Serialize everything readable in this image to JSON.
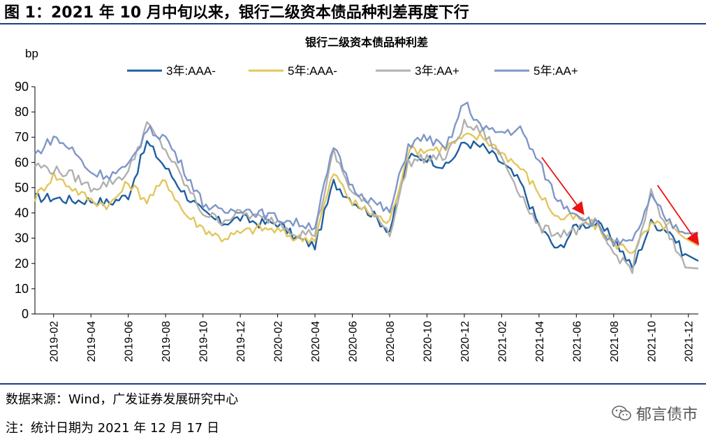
{
  "figure": {
    "title": "图 1：2021 年 10 月中旬以来，银行二级资本债品种利差再度下行",
    "source": "数据来源：Wind，广发证券发展研究中心",
    "note": "注：统计日期为 2021 年 12 月 17 日",
    "watermark": "郁言债市"
  },
  "chart_data": {
    "type": "line",
    "title": "银行二级资本债品种利差",
    "ylabel": "bp",
    "xlabel": "",
    "ylim": [
      0,
      90
    ],
    "yticks": [
      0,
      10,
      20,
      30,
      40,
      50,
      60,
      70,
      80,
      90
    ],
    "x_start": "2019-01",
    "x_end": "2021-12-17",
    "xticks": [
      "2019-02",
      "2019-04",
      "2019-06",
      "2019-08",
      "2019-10",
      "2019-12",
      "2020-02",
      "2020-04",
      "2020-06",
      "2020-08",
      "2020-10",
      "2020-12",
      "2021-02",
      "2021-04",
      "2021-06",
      "2021-08",
      "2021-10",
      "2021-12"
    ],
    "x": [
      "2019-01",
      "2019-02",
      "2019-03",
      "2019-04",
      "2019-05",
      "2019-06",
      "2019-07",
      "2019-08",
      "2019-09",
      "2019-10",
      "2019-11",
      "2019-12",
      "2020-01",
      "2020-02",
      "2020-03",
      "2020-04",
      "2020-05",
      "2020-06",
      "2020-07",
      "2020-08",
      "2020-09",
      "2020-10",
      "2020-11",
      "2020-12",
      "2021-01",
      "2021-02",
      "2021-03",
      "2021-04",
      "2021-05",
      "2021-06",
      "2021-07",
      "2021-08",
      "2021-09",
      "2021-10",
      "2021-11",
      "2021-12"
    ],
    "series": [
      {
        "name": "3年:AAA-",
        "color": "#1f5fa0",
        "values": [
          46,
          46,
          45,
          45,
          44,
          47,
          68,
          58,
          48,
          40,
          36,
          38,
          36,
          36,
          30,
          27,
          52,
          45,
          40,
          33,
          62,
          62,
          58,
          68,
          66,
          60,
          52,
          35,
          25,
          35,
          36,
          30,
          18,
          36,
          33,
          21
        ]
      },
      {
        "name": "5年:AAA-",
        "color": "#e3c65c",
        "values": [
          46,
          55,
          50,
          45,
          43,
          52,
          45,
          53,
          40,
          34,
          30,
          32,
          34,
          33,
          30,
          30,
          56,
          44,
          40,
          36,
          65,
          65,
          66,
          70,
          70,
          64,
          58,
          48,
          38,
          38,
          35,
          28,
          25,
          35,
          35,
          27
        ]
      },
      {
        "name": "3年:AA+",
        "color": "#b0b0b0",
        "values": [
          59,
          57,
          55,
          50,
          52,
          56,
          75,
          65,
          52,
          40,
          37,
          40,
          38,
          37,
          32,
          32,
          64,
          48,
          42,
          32,
          60,
          62,
          62,
          75,
          72,
          62,
          48,
          34,
          32,
          33,
          36,
          24,
          18,
          48,
          30,
          18
        ]
      },
      {
        "name": "5年:AA+",
        "color": "#7f96c8",
        "values": [
          63,
          70,
          65,
          56,
          55,
          58,
          73,
          70,
          57,
          44,
          40,
          42,
          40,
          38,
          36,
          35,
          66,
          50,
          45,
          40,
          67,
          70,
          65,
          84,
          73,
          72,
          73,
          60,
          45,
          40,
          36,
          28,
          28,
          46,
          36,
          32
        ]
      }
    ],
    "annotations": [
      "red-arrow-2021-05-to-2021-07",
      "red-arrow-2021-10-to-2021-12"
    ],
    "legend": "top"
  }
}
